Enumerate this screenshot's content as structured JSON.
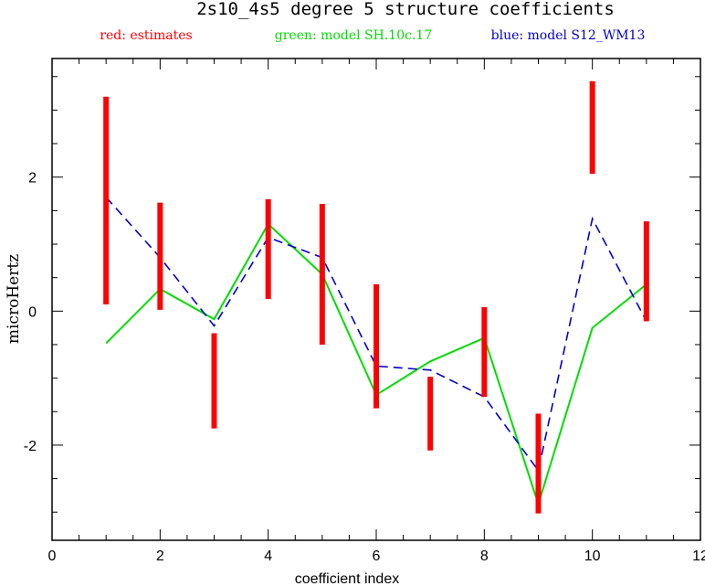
{
  "chart_data": {
    "type": "line",
    "title": "2s10_4s5 degree 5 structure coefficients",
    "legend": [
      {
        "label": "red: estimates",
        "color": "#ff0000"
      },
      {
        "label": "green: model SH.10c.17",
        "color": "#00dd00"
      },
      {
        "label": "blue: model S12_WM13",
        "color": "#0000cc"
      }
    ],
    "xlabel": "coefficient index",
    "ylabel": "microHertz",
    "xlim": [
      0,
      12
    ],
    "ylim": [
      -3.42,
      3.77
    ],
    "x_ticks": [
      0,
      2,
      4,
      6,
      8,
      10,
      12
    ],
    "y_ticks": [
      -2,
      0,
      2
    ],
    "x_tick_labels": [
      "0",
      "2",
      "4",
      "6",
      "8",
      "10",
      "12"
    ],
    "y_tick_labels": [
      "-2",
      "0",
      "2"
    ],
    "grid": false,
    "estimates": {
      "color": "#ff0000",
      "ranges": [
        {
          "x": 1,
          "low": 0.1,
          "high": 3.2
        },
        {
          "x": 2,
          "low": 0.02,
          "high": 1.62
        },
        {
          "x": 3,
          "low": -1.75,
          "high": -0.33
        },
        {
          "x": 4,
          "low": 0.18,
          "high": 1.67
        },
        {
          "x": 5,
          "low": -0.5,
          "high": 1.6
        },
        {
          "x": 6,
          "low": -1.45,
          "high": 0.4
        },
        {
          "x": 7,
          "low": -2.08,
          "high": -0.98
        },
        {
          "x": 8,
          "low": -1.28,
          "high": 0.06
        },
        {
          "x": 9,
          "low": -3.02,
          "high": -1.53
        },
        {
          "x": 10,
          "low": 2.05,
          "high": 3.43
        },
        {
          "x": 11,
          "low": -0.15,
          "high": 1.34
        }
      ]
    },
    "series": [
      {
        "name": "model SH.10c.17",
        "color": "#00dd00",
        "style": "solid",
        "x": [
          1,
          2,
          3,
          4,
          5,
          6,
          7,
          8,
          9,
          10,
          11
        ],
        "values": [
          -0.48,
          0.33,
          -0.12,
          1.3,
          0.55,
          -1.25,
          -0.75,
          -0.4,
          -2.88,
          -0.25,
          0.4
        ]
      },
      {
        "name": "model S12_WM13",
        "color": "#0000cc",
        "style": "dashed",
        "x": [
          1,
          2,
          3,
          4,
          5,
          6,
          7,
          8,
          9,
          10,
          11
        ],
        "values": [
          1.7,
          0.8,
          -0.22,
          1.1,
          0.8,
          -0.82,
          -0.88,
          -1.28,
          -2.38,
          1.38,
          -0.15
        ]
      }
    ]
  }
}
